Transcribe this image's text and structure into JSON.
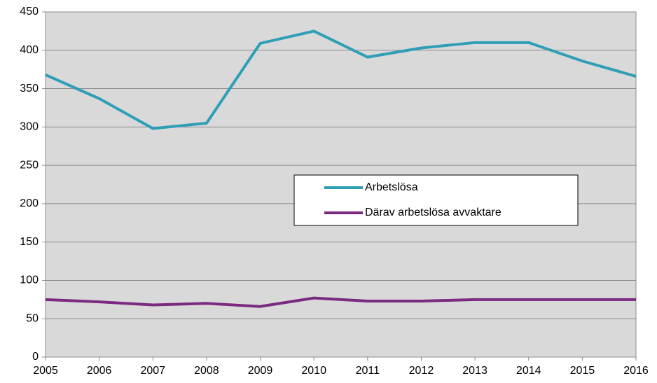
{
  "chart_data": {
    "type": "line",
    "x": [
      2005,
      2006,
      2007,
      2008,
      2009,
      2010,
      2011,
      2012,
      2013,
      2014,
      2015,
      2016
    ],
    "series": [
      {
        "name": "Arbetslösa",
        "color": "#2f9fb6",
        "values": [
          368,
          337,
          298,
          305,
          409,
          425,
          391,
          403,
          410,
          410,
          386,
          366
        ]
      },
      {
        "name": "Därav arbetslösa avvaktare",
        "color": "#7a2b80",
        "values": [
          75,
          72,
          68,
          70,
          66,
          77,
          73,
          73,
          75,
          75,
          75,
          75
        ]
      }
    ],
    "xlim": [
      2005,
      2016
    ],
    "xticks": [
      2005,
      2006,
      2007,
      2008,
      2009,
      2010,
      2011,
      2012,
      2013,
      2014,
      2015,
      2016
    ],
    "ylim": [
      0,
      450
    ],
    "yticks": [
      0,
      50,
      100,
      150,
      200,
      250,
      300,
      350,
      400,
      450
    ],
    "grid": true
  }
}
